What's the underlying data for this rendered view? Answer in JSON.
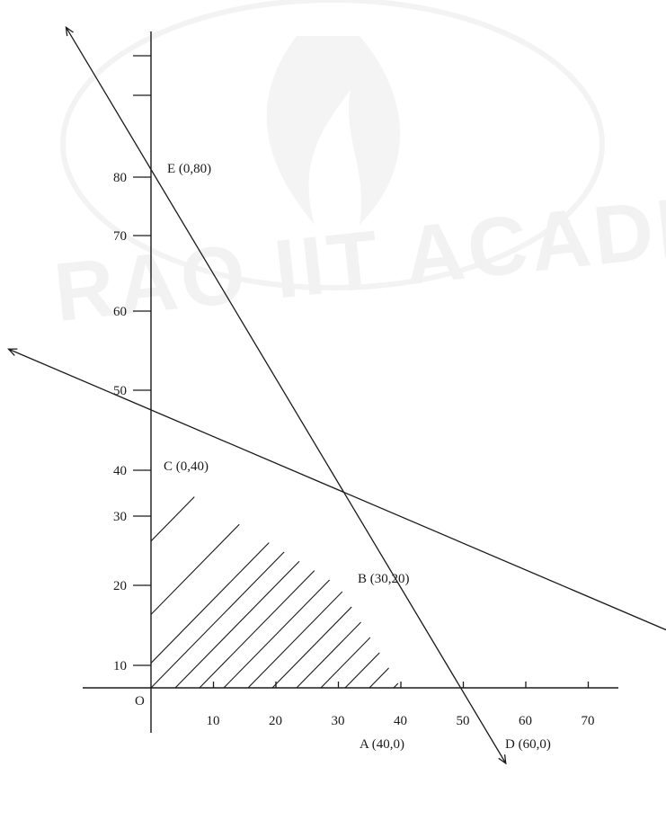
{
  "watermark": {
    "text": "RAO IIT ACADEMY"
  },
  "axes": {
    "origin_label": "O",
    "x_ticks": [
      10,
      20,
      30,
      40,
      50,
      60,
      70
    ],
    "y_ticks": [
      10,
      20,
      30,
      40,
      50,
      60,
      70,
      80
    ],
    "y_unlabeled_ticks": [
      90,
      100
    ]
  },
  "points": [
    {
      "id": "E",
      "label": "E (0,80)",
      "x": 0,
      "y": 80
    },
    {
      "id": "C",
      "label": "C (0,40)",
      "x": 0,
      "y": 40
    },
    {
      "id": "B",
      "label": "B (30,20)",
      "x": 30,
      "y": 20
    },
    {
      "id": "A",
      "label": "A (40,0)",
      "x": 40,
      "y": 0
    },
    {
      "id": "D",
      "label": "D (60,0)",
      "x": 60,
      "y": 0
    }
  ],
  "lines": [
    {
      "name": "line-ea",
      "through": [
        [
          0,
          80
        ],
        [
          40,
          0
        ]
      ]
    },
    {
      "name": "line-cd",
      "through": [
        [
          0,
          40
        ],
        [
          60,
          0
        ]
      ]
    }
  ],
  "feasible_region": {
    "vertices": [
      [
        0,
        0
      ],
      [
        40,
        0
      ],
      [
        30,
        20
      ],
      [
        0,
        40
      ]
    ],
    "style": "hatched"
  }
}
